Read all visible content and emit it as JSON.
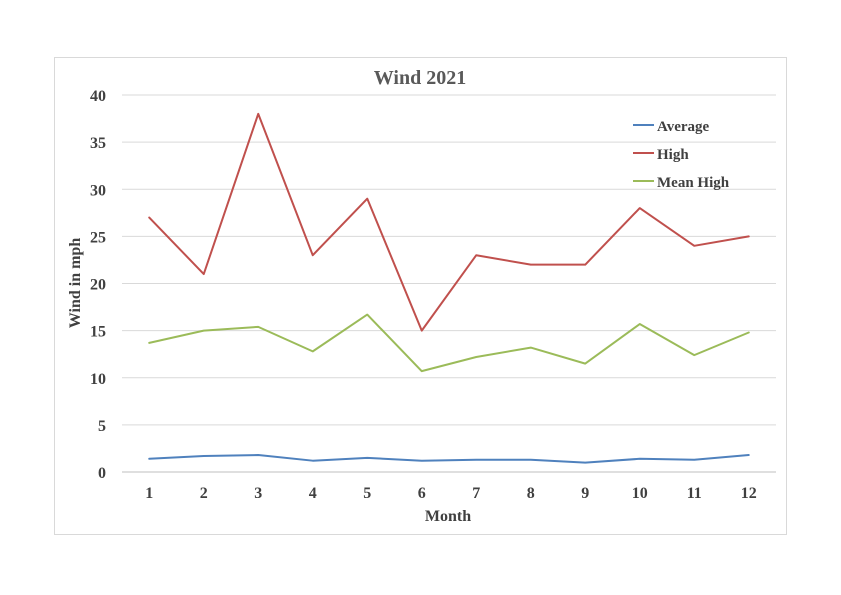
{
  "chart_data": {
    "type": "line",
    "title": "Wind 2021",
    "xlabel": "Month",
    "ylabel": "Wind in mph",
    "categories": [
      "1",
      "2",
      "3",
      "4",
      "5",
      "6",
      "7",
      "8",
      "9",
      "10",
      "11",
      "12"
    ],
    "ylim": [
      0,
      40
    ],
    "yticks": [
      "0",
      "5",
      "10",
      "15",
      "20",
      "25",
      "30",
      "35",
      "40"
    ],
    "grid": true,
    "legend_position": "top-right",
    "series": [
      {
        "name": "Average",
        "color": "#4f81bd",
        "values": [
          1.4,
          1.7,
          1.8,
          1.2,
          1.5,
          1.2,
          1.3,
          1.3,
          1.0,
          1.4,
          1.3,
          1.8
        ]
      },
      {
        "name": "High",
        "color": "#c0504d",
        "values": [
          27,
          21,
          38,
          23,
          29,
          15,
          23,
          22,
          22,
          28,
          24,
          25
        ]
      },
      {
        "name": "Mean High",
        "color": "#9bbb59",
        "values": [
          13.7,
          15.0,
          15.4,
          12.8,
          16.7,
          10.7,
          12.2,
          13.2,
          11.5,
          15.7,
          12.4,
          14.8
        ]
      }
    ]
  }
}
